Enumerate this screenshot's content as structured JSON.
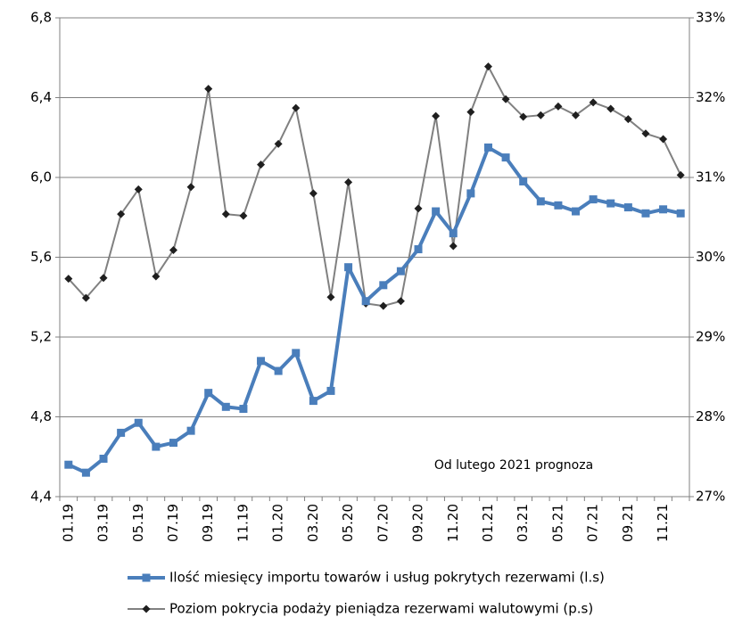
{
  "chart_data": {
    "type": "line",
    "categories": [
      "01.19",
      null,
      "03.19",
      null,
      "05.19",
      null,
      "07.19",
      null,
      "09.19",
      null,
      "11.19",
      null,
      "01.20",
      null,
      "03.20",
      null,
      "05.20",
      null,
      "07.20",
      null,
      "09.20",
      null,
      "11.20",
      null,
      "01.21",
      null,
      "03.21",
      null,
      "05.21",
      null,
      "07.21",
      null,
      "09.21",
      null,
      "11.21",
      null
    ],
    "series": [
      {
        "name": "Ilość miesięcy importu towarów i usług pokrytych rezerwami (l.s)",
        "color": "#4a7ebb",
        "axis": "y",
        "values": [
          4.56,
          4.52,
          4.59,
          4.72,
          4.77,
          4.65,
          4.67,
          4.73,
          4.92,
          4.85,
          4.84,
          5.08,
          5.03,
          5.12,
          4.88,
          4.93,
          5.55,
          5.38,
          5.46,
          5.53,
          5.64,
          5.83,
          5.72,
          5.92,
          6.15,
          6.1,
          5.98,
          5.88,
          5.86,
          5.83,
          5.89,
          5.87,
          5.85,
          5.82,
          5.84,
          5.82
        ]
      },
      {
        "name": "Poziom pokrycia podaży pieniądza rezerwami walutowymi (p.s)",
        "color": "#808080",
        "axis": "y2",
        "values": [
          29.73,
          29.49,
          29.74,
          30.54,
          30.85,
          29.76,
          30.09,
          30.88,
          32.11,
          30.54,
          30.52,
          31.16,
          31.42,
          31.87,
          30.8,
          29.5,
          30.94,
          29.42,
          29.39,
          29.45,
          30.61,
          31.77,
          30.14,
          31.82,
          32.39,
          31.98,
          31.76,
          31.78,
          31.89,
          31.78,
          31.94,
          31.86,
          31.73,
          31.55,
          31.48,
          31.03
        ]
      }
    ],
    "ylim": [
      4.4,
      6.8
    ],
    "yticks": [
      {
        "value": 4.4,
        "label": "4,4"
      },
      {
        "value": 4.8,
        "label": "4,8"
      },
      {
        "value": 5.2,
        "label": "5,2"
      },
      {
        "value": 5.6,
        "label": "5,6"
      },
      {
        "value": 6.0,
        "label": "6,0"
      },
      {
        "value": 6.4,
        "label": "6,4"
      },
      {
        "value": 6.8,
        "label": "6,8"
      }
    ],
    "y2lim": [
      27,
      33
    ],
    "y2ticks": [
      {
        "value": 27,
        "label": "27%"
      },
      {
        "value": 28,
        "label": "28%"
      },
      {
        "value": 29,
        "label": "29%"
      },
      {
        "value": 30,
        "label": "30%"
      },
      {
        "value": 31,
        "label": "31%"
      },
      {
        "value": 32,
        "label": "32%"
      },
      {
        "value": 33,
        "label": "33%"
      }
    ],
    "annotation": "Od lutego 2021 prognoza",
    "grid": true,
    "legend": "bottom"
  }
}
